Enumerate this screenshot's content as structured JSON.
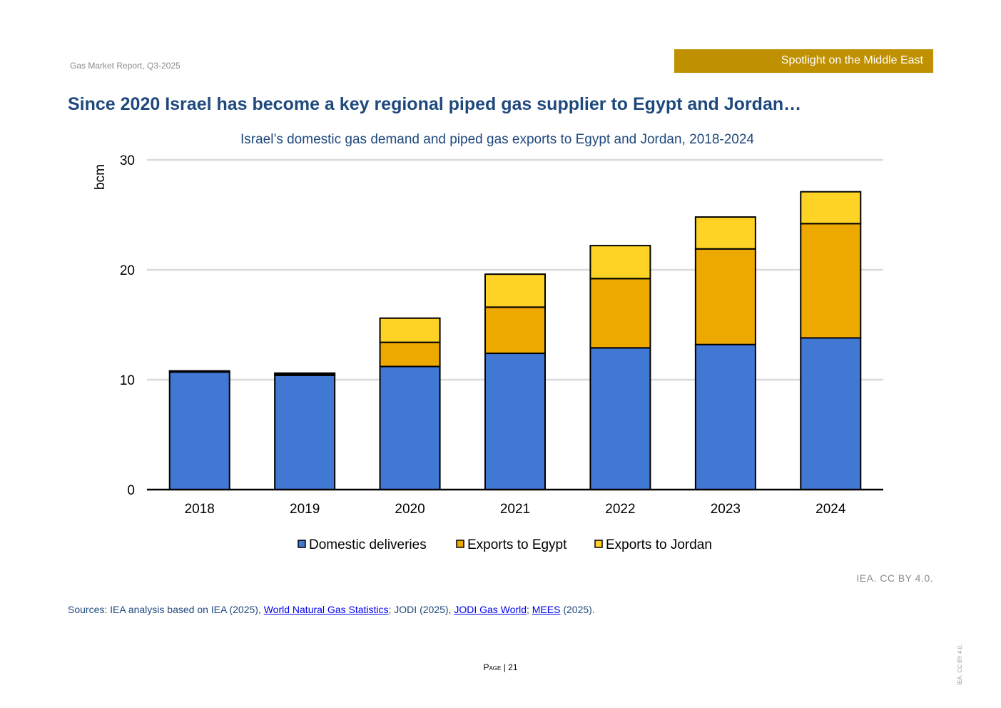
{
  "header": {
    "report": "Gas Market Report, Q3-2025",
    "banner": "Spotlight on the Middle East",
    "banner_color": "#bf9000"
  },
  "title": "Since 2020 Israel has become a key regional piped gas supplier to Egypt and Jordan…",
  "chart_data": {
    "type": "bar",
    "stacked": true,
    "title": "Israel’s domestic gas demand and piped gas exports to Egypt and Jordan, 2018-2024",
    "xlabel": "",
    "ylabel": "bcm",
    "ylim": [
      0,
      30
    ],
    "yticks": [
      0,
      10,
      20,
      30
    ],
    "grid": true,
    "legend": "bottom",
    "categories": [
      "2018",
      "2019",
      "2020",
      "2021",
      "2022",
      "2023",
      "2024"
    ],
    "series": [
      {
        "name": "Domestic deliveries",
        "color": "#4178d4",
        "values": [
          10.7,
          10.4,
          11.2,
          12.4,
          12.9,
          13.2,
          13.8
        ]
      },
      {
        "name": "Exports to Egypt",
        "color": "#eea900",
        "values": [
          0,
          0.1,
          2.2,
          4.2,
          6.3,
          8.7,
          10.4
        ]
      },
      {
        "name": "Exports to Jordan",
        "color": "#fed325",
        "values": [
          0.1,
          0.1,
          2.2,
          3.0,
          3.0,
          2.9,
          2.9
        ]
      }
    ]
  },
  "credit": "IEA. CC BY 4.0.",
  "sources": {
    "prefix": "Sources: IEA analysis based on IEA (2025), ",
    "link1": "World Natural Gas Statistics",
    "mid1": "; JODI (2025), ",
    "link2": "JODI Gas World",
    "mid2": "; ",
    "link3": "MEES",
    "suffix": " (2025)."
  },
  "footer": {
    "page_label": "Page",
    "page_sep": " | ",
    "page_number": "21",
    "side_credit": "IEA. CC BY 4.0."
  }
}
